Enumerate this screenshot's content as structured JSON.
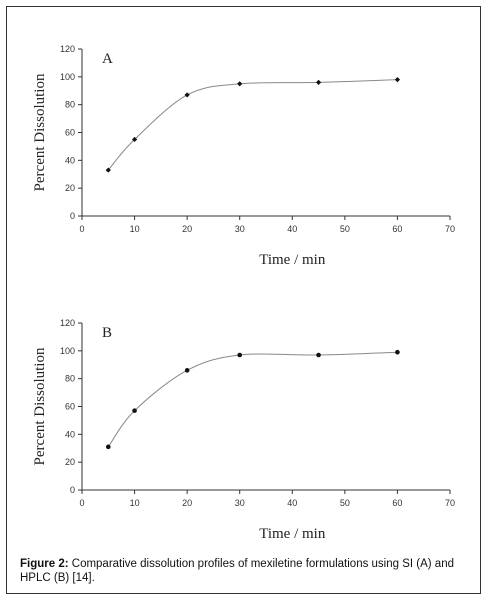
{
  "chart_data": [
    {
      "type": "line",
      "panel_label": "A",
      "x": [
        5,
        10,
        20,
        30,
        45,
        60
      ],
      "series": [
        {
          "values": [
            33,
            55,
            87,
            95,
            96,
            98
          ]
        }
      ],
      "xlabel": "Time / min",
      "ylabel": "Percent Dissolution",
      "xlim": [
        0,
        70
      ],
      "ylim": [
        0,
        120
      ],
      "xticks": [
        0,
        10,
        20,
        30,
        40,
        50,
        60,
        70
      ],
      "yticks": [
        0,
        20,
        40,
        60,
        80,
        100,
        120
      ],
      "grid": false,
      "marker": "diamond"
    },
    {
      "type": "line",
      "panel_label": "B",
      "x": [
        5,
        10,
        20,
        30,
        45,
        60
      ],
      "series": [
        {
          "values": [
            31,
            57,
            86,
            97,
            97,
            99
          ]
        }
      ],
      "xlabel": "Time / min",
      "ylabel": "Percent Dissolution",
      "xlim": [
        0,
        70
      ],
      "ylim": [
        0,
        120
      ],
      "xticks": [
        0,
        10,
        20,
        30,
        40,
        50,
        60,
        70
      ],
      "yticks": [
        0,
        20,
        40,
        60,
        80,
        100,
        120
      ],
      "grid": false,
      "marker": "circle"
    }
  ],
  "caption": {
    "label": "Figure 2:",
    "text": " Comparative dissolution profiles of mexiletine formulations using SI (A) and HPLC (B) [14]."
  },
  "colors": {
    "line": "#888888",
    "marker": "#111111",
    "axis": "#333333",
    "frame": "#333333"
  }
}
